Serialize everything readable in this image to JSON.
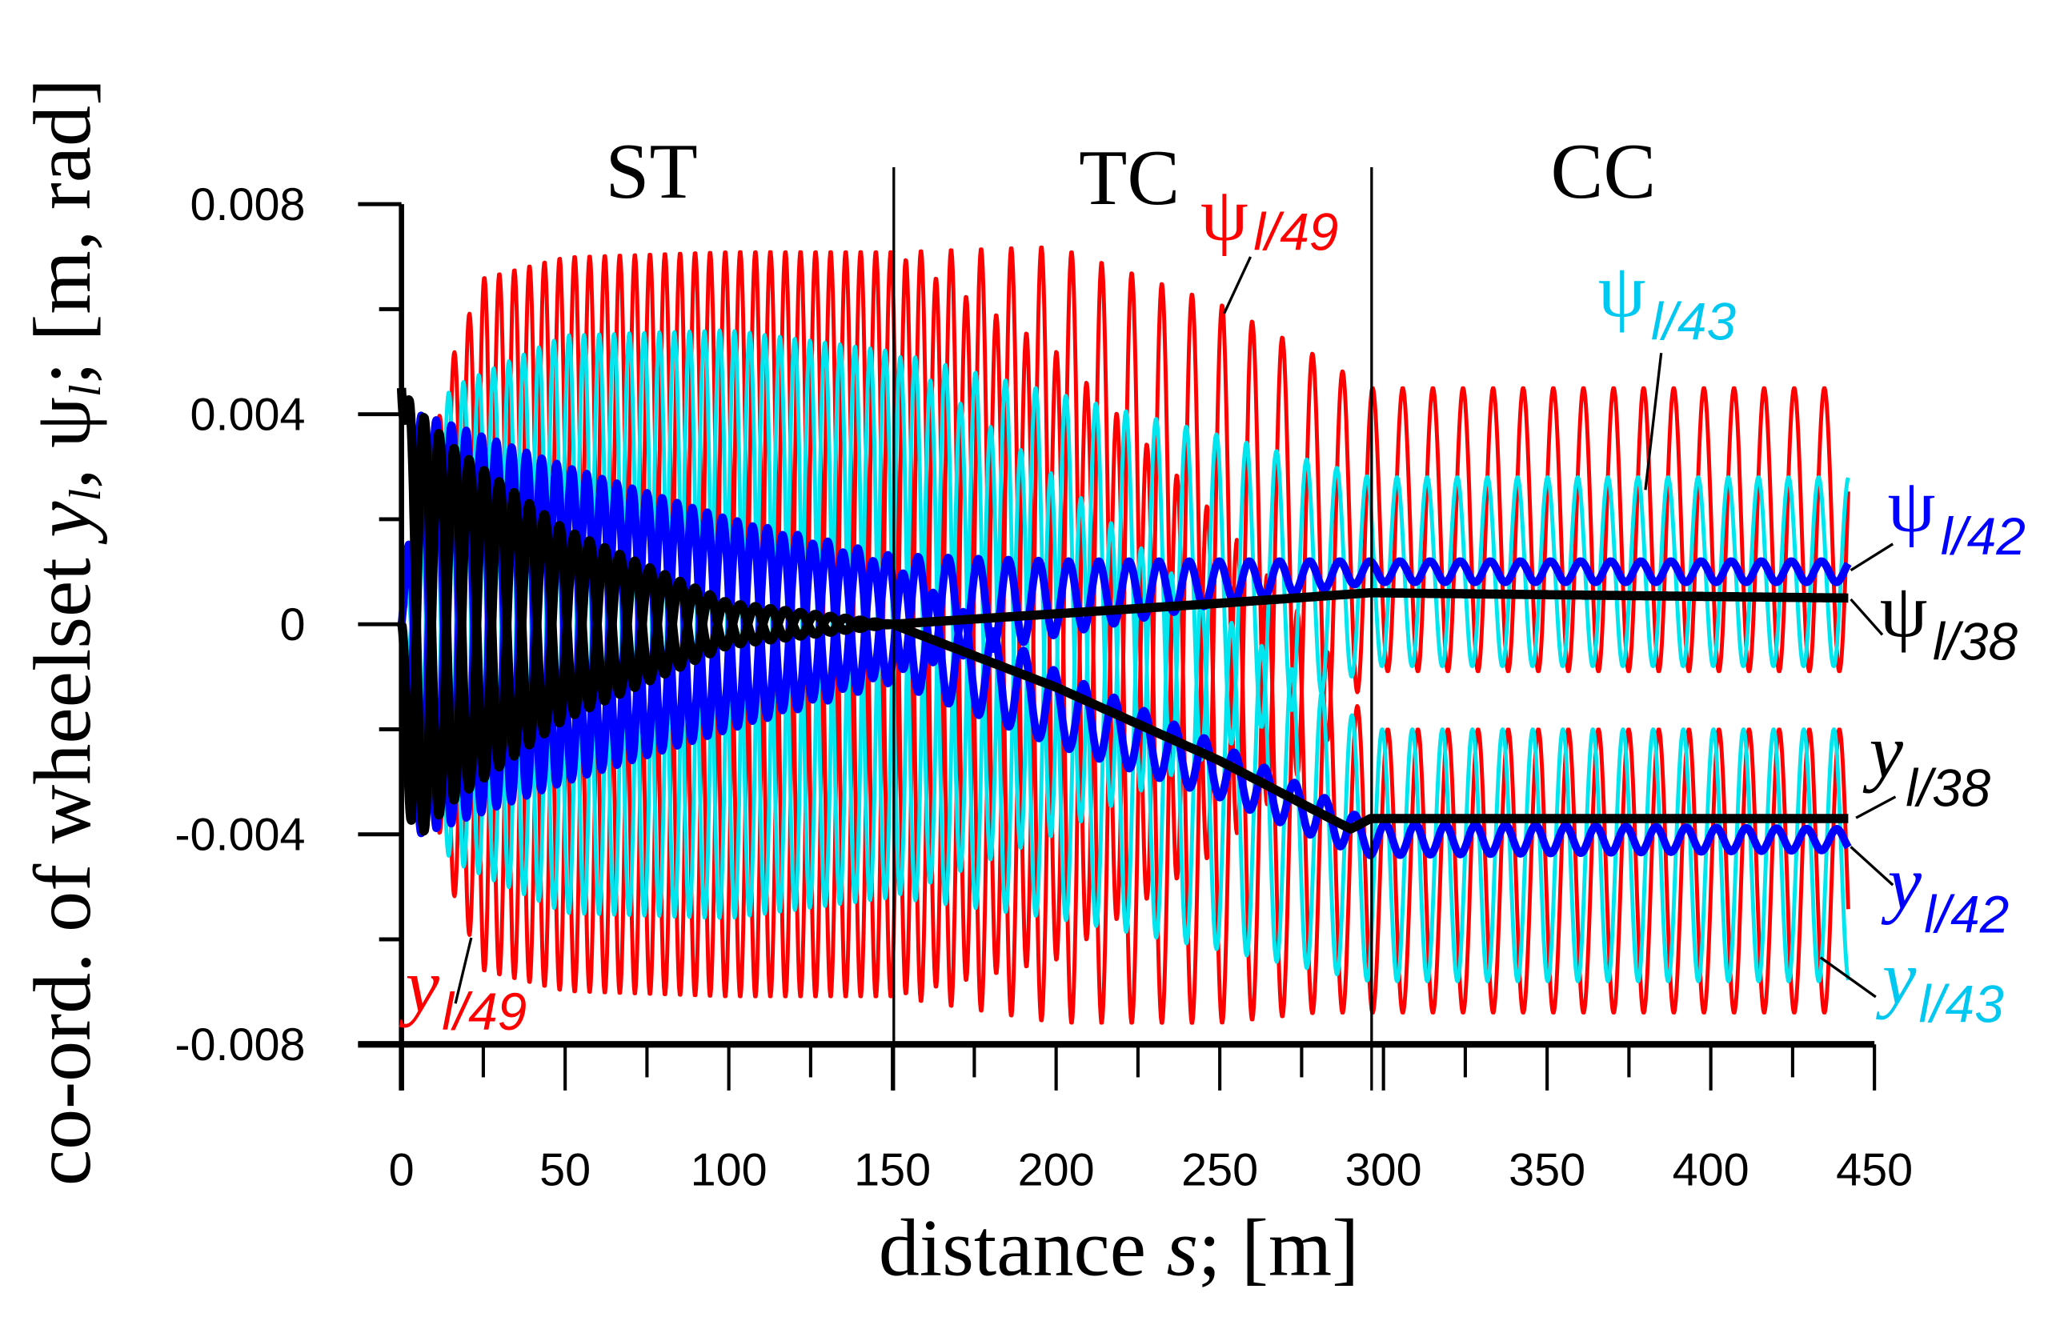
{
  "chart_data": {
    "type": "line",
    "title": "",
    "xlabel": {
      "text": "distance ",
      "var": "s",
      "unit": "; [m]"
    },
    "ylabel": "co-ord. of wheelset y_l, ψ_l; [m, rad]",
    "ylabel_parts": {
      "pre": "co-ord. of wheelset ",
      "y": "y",
      "sub1": "l",
      "comma": ", ψ",
      "sub2": "l",
      "post": "; [m, rad]"
    },
    "xlim": [
      0,
      450
    ],
    "ylim": [
      -0.008,
      0.008
    ],
    "x_ticks": [
      "0",
      "50",
      "100",
      "150",
      "200",
      "250",
      "300",
      "350",
      "400",
      "450"
    ],
    "y_ticks": [
      "-0.008",
      "-0.004",
      "0",
      "0.004",
      "0.008"
    ],
    "y_tick_values": [
      -0.008,
      -0.004,
      0,
      0.004,
      0.008
    ],
    "x_tick_values": [
      0,
      50,
      100,
      150,
      200,
      250,
      300,
      350,
      400,
      450
    ],
    "grid": false,
    "section_boundaries": [
      150,
      296
    ],
    "sections": [
      {
        "label": "ST",
        "s": 75
      },
      {
        "label": "TC",
        "s": 222
      },
      {
        "label": "CC",
        "s": 367
      }
    ],
    "note": "oscillating responses described by centre line and amplitude envelope (data units) with wavelength in m",
    "series": [
      {
        "name": "ψ l/49",
        "symbol": "ψ",
        "sub": "l/49",
        "color": "#ff0000",
        "wavelength": 9.2,
        "phase": 0.0,
        "s_end": 442,
        "s": [
          0,
          5,
          15,
          25,
          50,
          100,
          150,
          200,
          250,
          280,
          296,
          442
        ],
        "center": [
          0,
          0,
          0,
          0,
          0,
          0,
          0,
          0.0004,
          0.0009,
          0.0013,
          0.0018,
          0.0018
        ],
        "amp": [
          0.0,
          0.002,
          0.005,
          0.0066,
          0.007,
          0.0071,
          0.0071,
          0.0068,
          0.0052,
          0.0038,
          0.0027,
          0.0027
        ]
      },
      {
        "name": "y l/49",
        "symbol": "y",
        "sub": "l/49",
        "color": "#ff0000",
        "wavelength": 9.2,
        "phase": 3.14,
        "s_end": 442,
        "s": [
          0,
          5,
          15,
          25,
          50,
          100,
          150,
          200,
          250,
          280,
          296,
          442
        ],
        "center": [
          0,
          0,
          0,
          0,
          0,
          0,
          0,
          -0.0012,
          -0.0028,
          -0.0038,
          -0.0047,
          -0.0047
        ],
        "amp": [
          0.0,
          0.002,
          0.005,
          0.0066,
          0.007,
          0.0071,
          0.0071,
          0.0064,
          0.0048,
          0.0036,
          0.0027,
          0.0027
        ]
      },
      {
        "name": "ψ l/43",
        "symbol": "ψ",
        "sub": "l/43",
        "color": "#00e5ee",
        "wavelength": 9.2,
        "phase": 1.2,
        "s_end": 442,
        "s": [
          0,
          5,
          15,
          50,
          100,
          150,
          200,
          250,
          296,
          442
        ],
        "center": [
          0,
          0,
          0,
          0,
          0,
          0,
          0.0002,
          0.0006,
          0.001,
          0.001
        ],
        "amp": [
          0.0,
          0.003,
          0.0045,
          0.0055,
          0.0056,
          0.0052,
          0.0042,
          0.003,
          0.0018,
          0.0018
        ]
      },
      {
        "name": "y l/43",
        "symbol": "y",
        "sub": "l/43",
        "color": "#00e5ee",
        "wavelength": 9.2,
        "phase": 4.3,
        "s_end": 442,
        "s": [
          0,
          5,
          15,
          50,
          100,
          150,
          200,
          250,
          296,
          442
        ],
        "center": [
          0,
          0,
          0,
          0,
          0,
          0,
          -0.0014,
          -0.003,
          -0.0044,
          -0.0044
        ],
        "amp": [
          0.0,
          0.003,
          0.0045,
          0.0055,
          0.0056,
          0.0052,
          0.0042,
          0.0032,
          0.0024,
          0.0024
        ]
      },
      {
        "name": "ψ l/42",
        "symbol": "ψ",
        "sub": "l/42",
        "color": "#0000ff",
        "wavelength": 9.2,
        "phase": 0.6,
        "s_end": 442,
        "s": [
          0,
          5,
          15,
          50,
          100,
          150,
          200,
          250,
          296,
          442
        ],
        "center": [
          0,
          0,
          0,
          0,
          0,
          0.0002,
          0.0005,
          0.0008,
          0.001,
          0.001
        ],
        "amp": [
          0.0,
          0.004,
          0.0038,
          0.003,
          0.002,
          0.0011,
          0.0007,
          0.0004,
          0.0002,
          0.0002
        ]
      },
      {
        "name": "y l/42",
        "symbol": "y",
        "sub": "l/42",
        "color": "#0000ff",
        "wavelength": 9.2,
        "phase": 3.7,
        "s_end": 442,
        "s": [
          0,
          5,
          15,
          50,
          100,
          150,
          200,
          250,
          285,
          296,
          442
        ],
        "center": [
          0,
          0,
          0,
          0,
          0,
          0,
          -0.0016,
          -0.0028,
          -0.0038,
          -0.0041,
          -0.0041
        ],
        "amp": [
          0.0,
          0.004,
          0.0038,
          0.003,
          0.002,
          0.0011,
          0.0007,
          0.0005,
          0.0004,
          0.0003,
          0.0002
        ]
      },
      {
        "name": "ψ l/38",
        "symbol": "ψ",
        "sub": "l/38",
        "color": "#000000",
        "wavelength": 9.2,
        "phase": 0.0,
        "s_end": 442,
        "s": [
          0,
          3,
          15,
          50,
          100,
          150,
          200,
          250,
          296,
          442
        ],
        "center": [
          0.0045,
          0,
          0,
          0,
          0,
          0,
          0.0002,
          0.0004,
          0.0006,
          0.0005
        ],
        "amp": [
          0.0,
          0.0042,
          0.0034,
          0.0018,
          0.0004,
          0.0,
          0.0,
          0.0,
          0.0,
          0.0
        ]
      },
      {
        "name": "y l/38",
        "symbol": "y",
        "sub": "l/38",
        "color": "#000000",
        "wavelength": 9.2,
        "phase": 3.14,
        "s_end": 442,
        "s": [
          0,
          3,
          15,
          50,
          100,
          150,
          200,
          250,
          290,
          296,
          442
        ],
        "center": [
          0,
          0,
          0,
          0,
          0,
          0,
          -0.0012,
          -0.0026,
          -0.0039,
          -0.0037,
          -0.0037
        ],
        "amp": [
          0.0,
          0.0042,
          0.0034,
          0.0018,
          0.0004,
          0.0,
          0.0,
          0.0,
          0.0,
          0.0,
          0.0
        ]
      }
    ]
  }
}
